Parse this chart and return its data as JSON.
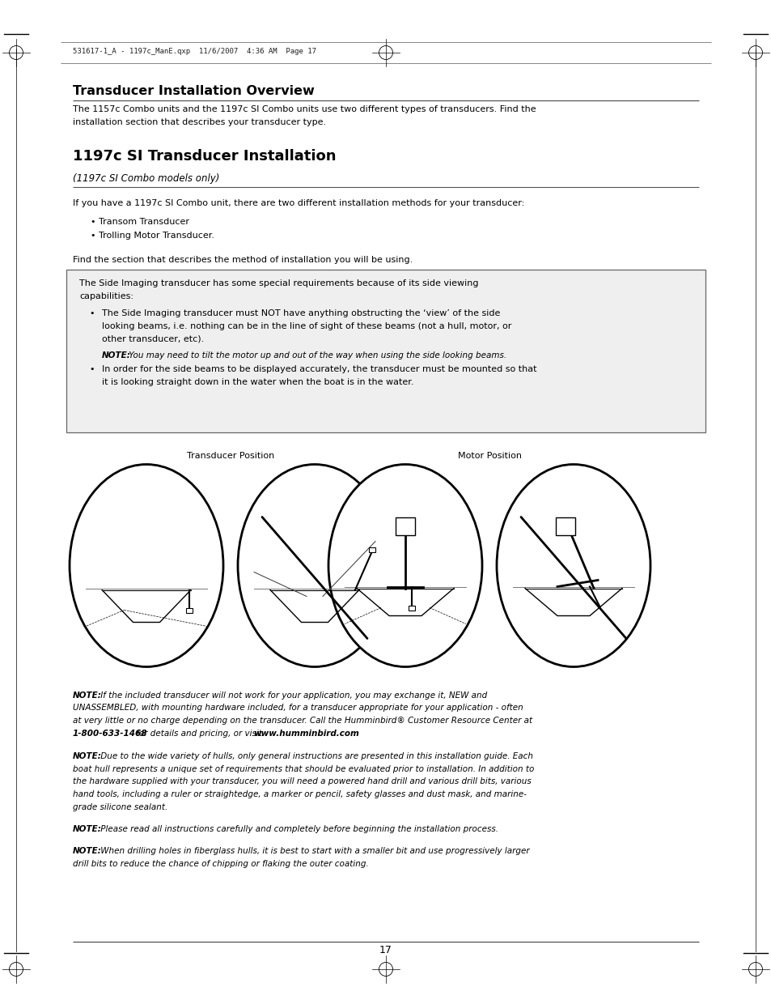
{
  "bg": "#ffffff",
  "pw": 9.54,
  "ph": 12.35,
  "dpi": 100,
  "ml": 0.9,
  "mr": 8.64,
  "header_text": "531617-1_A - 1197c_ManE.qxp  11/6/2007  4:36 AM  Page 17",
  "title1": "Transducer Installation Overview",
  "intro": "The 1157c Combo units and the 1197c SI Combo units use two different types of transducers. Find the installation section that describes your transducer type.",
  "sec_title": "1197c SI Transducer Installation",
  "sec_sub": "(1197c SI Combo models only)",
  "body1": "If you have a 1197c SI Combo unit, there are two different installation methods for your transducer:",
  "bul1": "Transom Transducer",
  "bul2": "Trolling Motor Transducer.",
  "body2": "Find the section that describes the method of installation you will be using.",
  "box1": "The Side Imaging transducer has some special requirements because of its side viewing capabilities:",
  "box_b1": "The Side Imaging transducer must NOT have anything obstructing the ‘view’ of the side looking beams, i.e. nothing can be in the line of sight of these beams (not a hull, motor, or other transducer, etc).",
  "box_n1b": "NOTE:",
  "box_n1r": " You may need to tilt the motor up and out of the way when using the side looking beams.",
  "box_b2": "In order for the side beams to be displayed accurately, the transducer must be mounted so that it is looking straight down in the water when the boat is in the water.",
  "lbl_trans": "Transducer Position",
  "lbl_motor": "Motor Position",
  "n1b": "NOTE:",
  "n1r": " If the included transducer will not work for your application, you may exchange it, NEW and UNASSEMBLED, with mounting hardware included, for a transducer appropriate for your application - often at very little or no charge depending on the transducer. Call the Humminbird® Customer Resource Center at",
  "n1phone": "1-800-633-1468",
  "n1mid": " for details and pricing, or visit ",
  "n1web": "www.humminbird.com",
  "n1end": ".",
  "n2b": "NOTE:",
  "n2r": " Due to the wide variety of hulls, only general instructions are presented in this installation guide. Each boat hull represents a unique set of requirements that should be evaluated prior to installation. In addition to the hardware supplied with your transducer, you will need a powered hand drill and various drill bits, various hand tools, including a ruler or straightedge, a marker or pencil, safety glasses and dust mask, and marine-grade silicone sealant.",
  "n3b": "NOTE:",
  "n3r": " Please read all instructions carefully and completely before beginning the installation process.",
  "n4b": "NOTE:",
  "n4r": " When drilling holes in fiberglass hulls, it is best to start with a smaller bit and use progressively larger drill bits to reduce the chance of chipping or flaking the outer coating.",
  "pg": "17"
}
